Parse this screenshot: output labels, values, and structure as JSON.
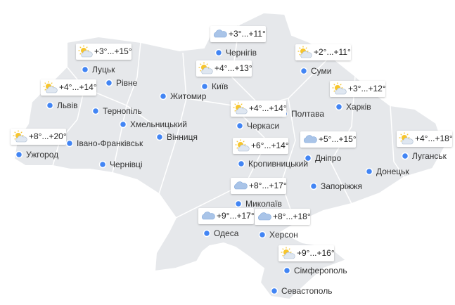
{
  "cities": [
    {
      "name": "Луцьк",
      "forecast": "+3°...+15°",
      "icon": "sun-cloud"
    },
    {
      "name": "Рівне"
    },
    {
      "name": "Львів",
      "forecast": "+4°...+14°",
      "icon": "sun-cloud"
    },
    {
      "name": "Тернопіль"
    },
    {
      "name": "Хмельницький"
    },
    {
      "name": "Житомир"
    },
    {
      "name": "Київ",
      "forecast": "+4°...+13°",
      "icon": "sun-cloud"
    },
    {
      "name": "Чернігів",
      "forecast": "+3°...+11°",
      "icon": "cloud"
    },
    {
      "name": "Суми",
      "forecast": "+2°...+11°",
      "icon": "sun-cloud"
    },
    {
      "name": "Харків",
      "forecast": "+3°...+12°",
      "icon": "sun-cloud"
    },
    {
      "name": "Полтава"
    },
    {
      "name": "Черкаси",
      "forecast": "+4°...+14°",
      "icon": "sun-cloud"
    },
    {
      "name": "Вінниця"
    },
    {
      "name": "Ужгород",
      "forecast": "+8°...+20°",
      "icon": "sun-cloud"
    },
    {
      "name": "Івано-Франківськ"
    },
    {
      "name": "Чернівці"
    },
    {
      "name": "Кропивницький",
      "forecast": "+6°...+14°",
      "icon": "sun-cloud"
    },
    {
      "name": "Дніпро",
      "forecast": "+5°...+15°",
      "icon": "cloud"
    },
    {
      "name": "Луганськ",
      "forecast": "+4°...+18°",
      "icon": "sun-cloud"
    },
    {
      "name": "Донецьк"
    },
    {
      "name": "Запоріжжя"
    },
    {
      "name": "Миколаїв",
      "forecast": "+8°...+17°",
      "icon": "cloud"
    },
    {
      "name": "Одеса",
      "forecast": "+9°...+17°",
      "icon": "cloud"
    },
    {
      "name": "Херсон",
      "forecast": "+8°...+18°",
      "icon": "cloud"
    },
    {
      "name": "Сімферополь",
      "forecast": "+9°...+16°",
      "icon": "sun-cloud"
    },
    {
      "name": "Севастополь"
    }
  ]
}
